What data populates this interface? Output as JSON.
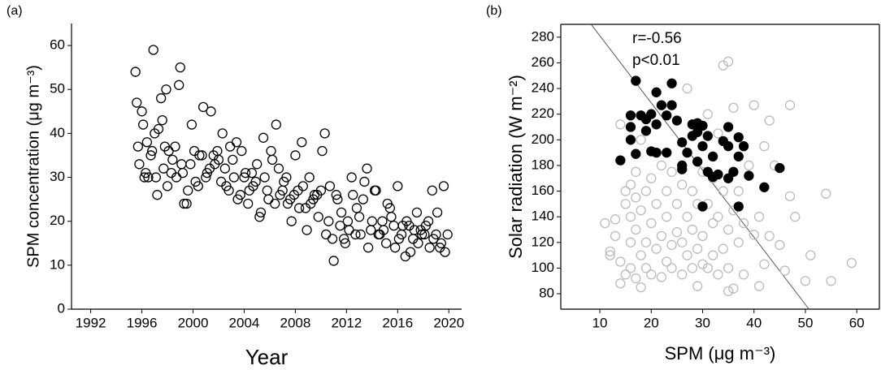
{
  "chart_data": [
    {
      "type": "scatter",
      "panel_label": "(a)",
      "x_label": "Year",
      "y_label": "SPM concentration (μg m⁻³)",
      "xlim": [
        1990.5,
        2021
      ],
      "ylim": [
        0,
        65
      ],
      "xticks": [
        1992,
        1996,
        2000,
        2004,
        2008,
        2012,
        2016,
        2020
      ],
      "yticks": [
        0,
        10,
        20,
        30,
        40,
        50,
        60
      ],
      "series": [
        {
          "color": "#000000",
          "filled": false,
          "x": [
            1995.5,
            1995.6,
            1995.8,
            1996,
            1996.2,
            1996.4,
            1996.7,
            1996.9,
            1997.1,
            1997.3,
            1997.5,
            1997.7,
            1997.9,
            1998.1,
            1998.3,
            1998.6,
            1998.9,
            1999.1,
            1999.3,
            1999.6,
            1999.9,
            2000.2,
            2000.5,
            2000.8,
            2001.1,
            2001.4,
            2001.7,
            2002,
            2002.3,
            2002.6,
            2002.9,
            2003.2,
            2003.5,
            2003.8,
            2004.1,
            2004.4,
            2004.7,
            2005,
            2005.3,
            2005.6,
            2005.9,
            2006.2,
            2006.5,
            2006.8,
            2007.1,
            2007.4,
            2007.7,
            2008,
            2008.3,
            2008.6,
            2008.9,
            2009.2,
            2009.5,
            2009.8,
            2010.1,
            2010.4,
            2010.7,
            2011,
            2011.3,
            2011.6,
            2011.9,
            2012.2,
            2012.5,
            2012.8,
            2013.1,
            2013.4,
            2013.7,
            2014,
            2014.3,
            2014.6,
            2014.9,
            2015.2,
            2015.5,
            2015.8,
            2016.1,
            2016.4,
            2016.7,
            2017,
            2017.3,
            2017.6,
            2017.9,
            2018.2,
            2018.5,
            2018.8,
            2019.1,
            2019.4,
            2019.7,
            1995.7,
            1996.1,
            1996.3,
            1996.5,
            1996.8,
            1997.0,
            1997.2,
            1997.6,
            1997.8,
            1998.0,
            1998.4,
            1998.7,
            1999.0,
            1999.2,
            1999.5,
            1999.8,
            2000.1,
            2000.4,
            2000.7,
            2001.0,
            2001.3,
            2001.6,
            2001.9,
            2002.2,
            2002.5,
            2002.8,
            2003.1,
            2003.4,
            2003.7,
            2004.0,
            2004.3,
            2004.6,
            2004.9,
            2005.2,
            2005.5,
            2005.8,
            2006.1,
            2006.4,
            2006.7,
            2007.0,
            2007.3,
            2007.6,
            2007.9,
            2008.2,
            2008.5,
            2008.8,
            2009.1,
            2009.4,
            2009.7,
            2010.0,
            2010.3,
            2010.6,
            2010.9,
            2011.2,
            2011.5,
            2011.8,
            2012.1,
            2012.4,
            2012.7,
            2013.0,
            2013.3,
            2013.6,
            2013.9,
            2014.2,
            2014.5,
            2014.8,
            2015.1,
            2015.4,
            2015.7,
            2016.0,
            2016.3,
            2016.6,
            2016.9,
            2017.2,
            2017.5,
            2017.8,
            2018.1,
            2018.4,
            2018.7,
            2019.0,
            2019.3,
            2019.6,
            2019.9
          ],
          "values": [
            54,
            47,
            33,
            45,
            30,
            38,
            35,
            59,
            30,
            41,
            48,
            32,
            50,
            36,
            31,
            37,
            51,
            33,
            24,
            27,
            42,
            29,
            35,
            46,
            31,
            45,
            33,
            34,
            40,
            28,
            37,
            30,
            25,
            36,
            31,
            27,
            28,
            33,
            22,
            30,
            25,
            34,
            42,
            26,
            29,
            24,
            20,
            35,
            23,
            28,
            18,
            24,
            26,
            21,
            36,
            17,
            28,
            11,
            25,
            22,
            15,
            18,
            26,
            23,
            17,
            29,
            14,
            20,
            27,
            17,
            18,
            24,
            21,
            14,
            16,
            19,
            20,
            13,
            18,
            15,
            17,
            19,
            14,
            16,
            22,
            15,
            13,
            37,
            42,
            31,
            30,
            36,
            40,
            26,
            43,
            37,
            28,
            34,
            30,
            55,
            31,
            24,
            33,
            36,
            28,
            35,
            30,
            32,
            35,
            36,
            29,
            32,
            27,
            34,
            38,
            26,
            30,
            24,
            31,
            29,
            21,
            39,
            27,
            36,
            24,
            32,
            27,
            30,
            25,
            26,
            27,
            38,
            23,
            30,
            25,
            26,
            27,
            40,
            20,
            16,
            26,
            19,
            16,
            20,
            30,
            17,
            21,
            25,
            32,
            18,
            27,
            17,
            20,
            15,
            23,
            19,
            28,
            17,
            12,
            19,
            16,
            22,
            18,
            17,
            20,
            27,
            17,
            14,
            28,
            17
          ]
        }
      ]
    },
    {
      "type": "scatter",
      "panel_label": "(b)",
      "x_label": "SPM (μg m⁻³)",
      "y_label": "Solar radiation (W m⁻²)",
      "annotations": [
        "r=-0.56",
        "p<0.01"
      ],
      "box": true,
      "xlim": [
        2.4,
        64.4
      ],
      "ylim": [
        68,
        290
      ],
      "xticks": [
        10,
        20,
        30,
        40,
        50,
        60
      ],
      "yticks": [
        80,
        100,
        120,
        140,
        160,
        180,
        200,
        220,
        240,
        260,
        280
      ],
      "fit_line": {
        "color": "#555555",
        "x": [
          8.4,
          50.7
        ],
        "y": [
          289.5,
          68
        ]
      },
      "series": [
        {
          "color": "#bbbbbb",
          "filled": false,
          "x": [
            11,
            12,
            12,
            13,
            13,
            14,
            14,
            14,
            15,
            15,
            15,
            16,
            16,
            16,
            16,
            17,
            17,
            17,
            17,
            18,
            18,
            18,
            18,
            19,
            19,
            19,
            20,
            20,
            20,
            21,
            21,
            22,
            22,
            22,
            23,
            23,
            23,
            24,
            24,
            24,
            25,
            25,
            26,
            26,
            26,
            27,
            27,
            27,
            28,
            28,
            28,
            29,
            29,
            29,
            30,
            30,
            30,
            31,
            31,
            31,
            32,
            32,
            32,
            33,
            33,
            33,
            34,
            34,
            34,
            35,
            35,
            35,
            35,
            36,
            36,
            36,
            37,
            37,
            38,
            38,
            39,
            40,
            40,
            41,
            41,
            42,
            42,
            43,
            43,
            44,
            45,
            46,
            47,
            47,
            48,
            50,
            51,
            54,
            55,
            59
          ],
          "values": [
            135,
            110,
            113,
            125,
            138,
            88,
            105,
            212,
            150,
            160,
            95,
            100,
            120,
            140,
            165,
            92,
            130,
            155,
            175,
            85,
            110,
            145,
            200,
            100,
            120,
            160,
            95,
            135,
            170,
            115,
            150,
            93,
            125,
            180,
            105,
            140,
            160,
            100,
            118,
            175,
            128,
            150,
            95,
            120,
            165,
            110,
            140,
            240,
            100,
            130,
            160,
            86,
            115,
            150,
            103,
            125,
            175,
            100,
            150,
            220,
            110,
            135,
            170,
            95,
            140,
            205,
            115,
            160,
            258,
            82,
            100,
            130,
            261,
            84,
            145,
            225,
            120,
            160,
            95,
            135,
            180,
            126,
            227,
            86,
            140,
            103,
            195,
            125,
            215,
            180,
            118,
            98,
            227,
            156,
            140,
            90,
            110,
            158,
            90,
            104
          ]
        },
        {
          "color": "#000000",
          "filled": true,
          "x": [
            14,
            16,
            16,
            16,
            17,
            17,
            18,
            19,
            19,
            20,
            20,
            21,
            21,
            21,
            22,
            23,
            23,
            24,
            24,
            25,
            26,
            26,
            26,
            27,
            28,
            28,
            29,
            29,
            29,
            30,
            30,
            30,
            31,
            31,
            32,
            32,
            33,
            34,
            35,
            35,
            35,
            36,
            37,
            37,
            37,
            38,
            39,
            42,
            45
          ],
          "values": [
            184,
            219,
            210,
            200,
            246,
            189,
            219,
            216,
            207,
            220,
            191,
            190,
            212,
            237,
            227,
            190,
            219,
            244,
            227,
            215,
            198,
            180,
            177,
            190,
            212,
            203,
            213,
            206,
            183,
            211,
            195,
            148,
            203,
            175,
            187,
            171,
            173,
            199,
            210,
            170,
            195,
            175,
            202,
            187,
            148,
            195,
            172,
            163,
            178
          ]
        }
      ]
    }
  ]
}
